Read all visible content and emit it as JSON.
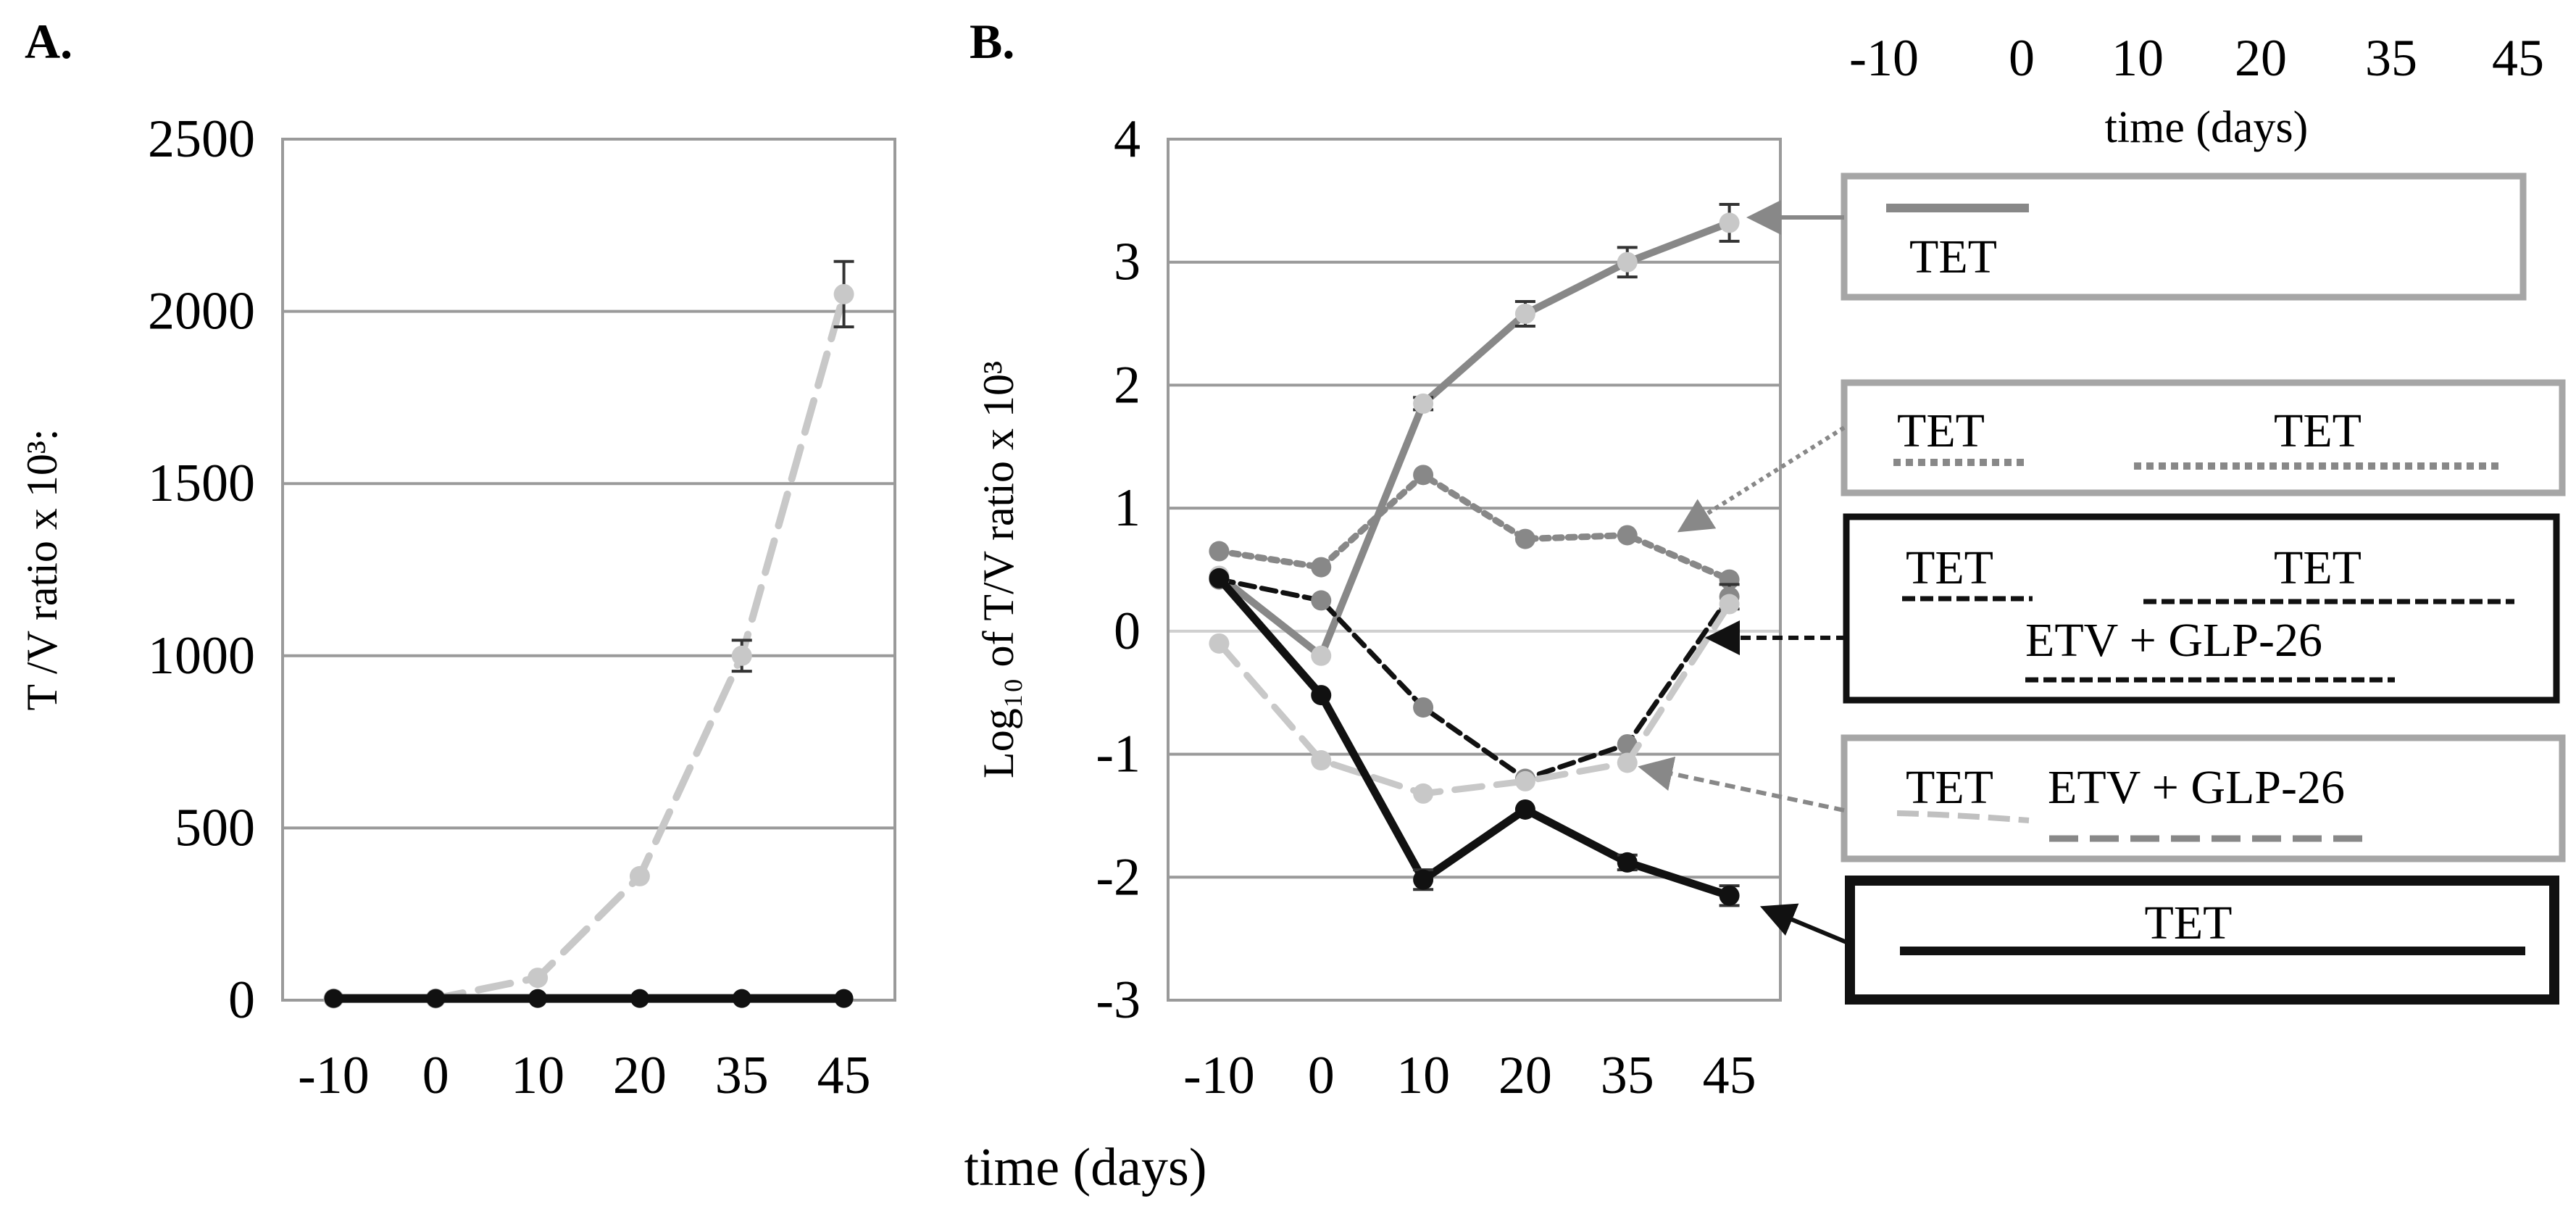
{
  "chart_data": [
    {
      "panel": "A.",
      "type": "line",
      "ylabel": "T /V ratio x 10³:",
      "xlabel": "time (days)",
      "categories": [
        "-10",
        "0",
        "10",
        "20",
        "35",
        "45"
      ],
      "yticks": [
        "0",
        "500",
        "1000",
        "1500",
        "2000",
        "2500"
      ],
      "ylim": [
        0,
        2500
      ],
      "grid": true,
      "series": [
        {
          "name": "TET then ETV + GLP-26 (dashed light grey)",
          "values": [
            5,
            5,
            65,
            360,
            1000,
            2050
          ],
          "errors": [
            0,
            0,
            0,
            0,
            45,
            95
          ]
        },
        {
          "name": "TET (solid black)",
          "values": [
            5,
            5,
            5,
            5,
            5,
            5
          ],
          "errors": [
            0,
            0,
            0,
            0,
            0,
            0
          ]
        }
      ]
    },
    {
      "panel": "B.",
      "type": "line",
      "ylabel": "Log₁₀ of T/V ratio x 10³",
      "xlabel": "time (days)",
      "categories": [
        "-10",
        "0",
        "10",
        "20",
        "35",
        "45"
      ],
      "yticks": [
        "-3",
        "-2",
        "-1",
        "0",
        "1",
        "2",
        "3",
        "4"
      ],
      "ylim": [
        -3,
        4
      ],
      "grid": true,
      "series": [
        {
          "name": "TET (solid grey)",
          "values": [
            0.45,
            -0.2,
            1.85,
            2.58,
            3.0,
            3.32
          ],
          "errors": [
            0,
            0,
            0.05,
            0.1,
            0.12,
            0.15
          ]
        },
        {
          "name": "TET / TET (dotted grey)",
          "values": [
            0.65,
            0.52,
            1.27,
            0.75,
            0.78,
            0.42
          ],
          "errors": [
            0,
            0,
            0,
            0,
            0,
            0
          ]
        },
        {
          "name": "TET / TET / ETV + GLP-26 (dashed black)",
          "values": [
            0.42,
            0.25,
            -0.62,
            -1.2,
            -0.92,
            0.28
          ],
          "errors": [
            0,
            0,
            0,
            0,
            0,
            0.1
          ]
        },
        {
          "name": "TET / ETV + GLP-26 (dashed light grey)",
          "values": [
            -0.1,
            -1.05,
            -1.32,
            -1.22,
            -1.07,
            0.22
          ],
          "errors": [
            0,
            0,
            0,
            0,
            0,
            0
          ]
        },
        {
          "name": "TET (solid black)",
          "values": [
            0.43,
            -0.52,
            -2.02,
            -1.45,
            -1.88,
            -2.15
          ],
          "errors": [
            0,
            0,
            0.08,
            0,
            0.06,
            0.08
          ]
        }
      ]
    }
  ],
  "timeline": {
    "ticks": [
      "-10",
      "0",
      "10",
      "20",
      "35",
      "45"
    ],
    "label": "time (days)"
  },
  "legend": [
    {
      "texts": [
        "TET"
      ]
    },
    {
      "texts": [
        "TET",
        "TET"
      ]
    },
    {
      "texts": [
        "TET",
        "TET",
        "ETV + GLP-26"
      ]
    },
    {
      "texts": [
        "TET",
        "ETV + GLP-26"
      ]
    },
    {
      "texts": [
        "TET"
      ]
    }
  ],
  "colors": {
    "grey": "#888888",
    "light": "#c8c8c8",
    "dark": "#111111",
    "box_grey": "#a6a6a6",
    "grid": "#9a9a9a",
    "axis": "#9a9a9a",
    "zero": "#cfcfcf",
    "errbar": "#333333"
  }
}
